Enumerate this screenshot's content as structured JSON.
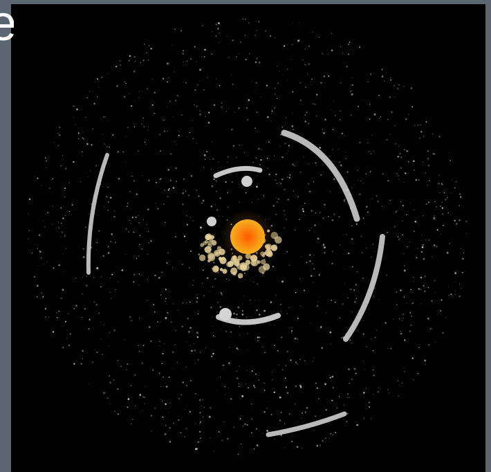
{
  "overlay": {
    "partial_caption": "e"
  },
  "scene": {
    "description_name": "simulated-planetary-disk",
    "colors": {
      "background": "#000000",
      "frame": "#5a6670",
      "star_outer": "#f6a21a",
      "star_inner": "#ff6a00",
      "debris": "#d8d8d8",
      "warm_debris": "#e8d2a0"
    }
  }
}
